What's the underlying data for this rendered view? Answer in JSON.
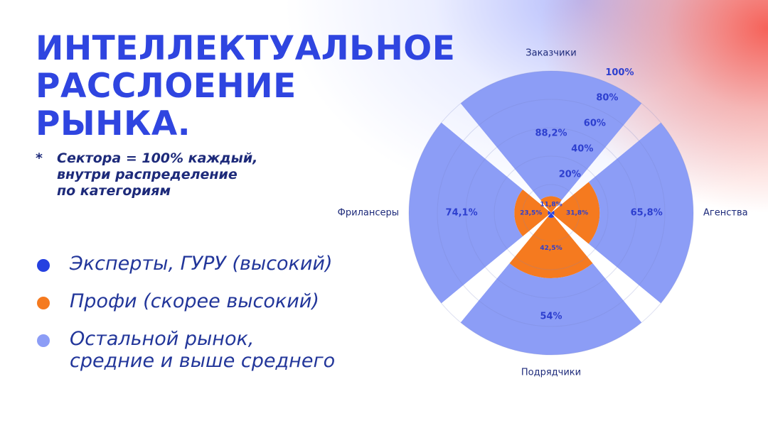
{
  "chart_data": {
    "type": "polar_stacked",
    "title": [
      "ИНТЕЛЛЕКТУАЛЬНОЕ",
      "РАССЛОЕНИЕ",
      "РЫНКА."
    ],
    "note_marker": "*",
    "note": "Сектора = 100% каждый,\nвнутри распределение\nпо категориям",
    "categories": [
      "Заказчики",
      "Агенства",
      "Подрядчики",
      "Фрилансеры"
    ],
    "series": [
      {
        "name": "Эксперты, ГУРУ (высокий)",
        "color": "#2540e0",
        "values": [
          0,
          2.4,
          3.5,
          2.4
        ]
      },
      {
        "name": "Профи (скорее высокий)",
        "color": "#f57a1f",
        "values": [
          11.8,
          31.8,
          42.5,
          23.5
        ],
        "value_labels": [
          "11,8%",
          "31,8%",
          "42,5%",
          "23,5%"
        ]
      },
      {
        "name": "Остальной рынок,\nсредние и выше среднего",
        "color": "#8c9df6",
        "values": [
          88.2,
          65.8,
          54,
          74.1
        ],
        "value_labels": [
          "88,2%",
          "65,8%",
          "54%",
          "74,1%"
        ]
      }
    ],
    "rlim": [
      0,
      100
    ],
    "rticks": [
      {
        "value": 20,
        "label": "20%"
      },
      {
        "value": 40,
        "label": "40%"
      },
      {
        "value": 60,
        "label": "60%"
      },
      {
        "value": 80,
        "label": "80%"
      },
      {
        "value": 100,
        "label": "100%"
      }
    ],
    "grid": true
  }
}
